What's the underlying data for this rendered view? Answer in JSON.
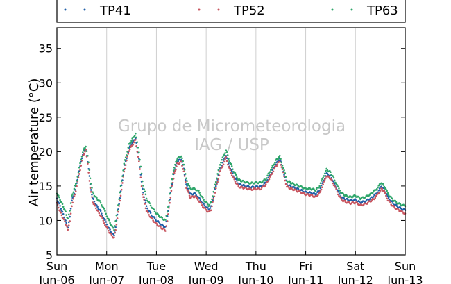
{
  "chart_data": {
    "type": "line",
    "title": "",
    "xlabel": "",
    "ylabel": "Air temperature (°C)",
    "ylim": [
      5,
      38
    ],
    "xlim": [
      0,
      7
    ],
    "yticks": [
      5,
      10,
      15,
      20,
      25,
      30,
      35
    ],
    "xtick_labels": [
      {
        "day": "Sun",
        "date": "Jun-06"
      },
      {
        "day": "Mon",
        "date": "Jun-07"
      },
      {
        "day": "Tue",
        "date": "Jun-08"
      },
      {
        "day": "Wed",
        "date": "Jun-09"
      },
      {
        "day": "Thu",
        "date": "Jun-10"
      },
      {
        "day": "Fri",
        "date": "Jun-11"
      },
      {
        "day": "Sat",
        "date": "Jun-12"
      },
      {
        "day": "Sun",
        "date": "Jun-13"
      }
    ],
    "grid": "vertical",
    "legend_position": "top",
    "watermark": [
      "Grupo de Micrometeorologia",
      "IAG / USP"
    ],
    "x_unit_note": "days since Sun Jun-06 00:00",
    "series": [
      {
        "name": "TP41",
        "color": "#1f5fa8",
        "points": [
          [
            0.0,
            13.2
          ],
          [
            0.08,
            11.8
          ],
          [
            0.16,
            10.2
          ],
          [
            0.22,
            9.0
          ],
          [
            0.26,
            10.5
          ],
          [
            0.3,
            12.8
          ],
          [
            0.38,
            14.8
          ],
          [
            0.45,
            17.2
          ],
          [
            0.52,
            19.6
          ],
          [
            0.58,
            20.4
          ],
          [
            0.62,
            18.6
          ],
          [
            0.67,
            15.2
          ],
          [
            0.72,
            13.2
          ],
          [
            0.8,
            12.1
          ],
          [
            0.88,
            11.3
          ],
          [
            0.95,
            10.2
          ],
          [
            1.02,
            9.2
          ],
          [
            1.1,
            8.2
          ],
          [
            1.15,
            7.8
          ],
          [
            1.18,
            9.0
          ],
          [
            1.25,
            12.5
          ],
          [
            1.35,
            17.5
          ],
          [
            1.45,
            20.5
          ],
          [
            1.58,
            22.0
          ],
          [
            1.65,
            19.0
          ],
          [
            1.72,
            14.5
          ],
          [
            1.8,
            12.0
          ],
          [
            1.9,
            10.8
          ],
          [
            2.0,
            10.0
          ],
          [
            2.1,
            9.4
          ],
          [
            2.18,
            9.0
          ],
          [
            2.22,
            10.5
          ],
          [
            2.3,
            14.8
          ],
          [
            2.36,
            17.2
          ],
          [
            2.42,
            18.6
          ],
          [
            2.5,
            18.9
          ],
          [
            2.55,
            17.5
          ],
          [
            2.6,
            15.2
          ],
          [
            2.68,
            13.8
          ],
          [
            2.78,
            13.9
          ],
          [
            2.85,
            13.3
          ],
          [
            2.95,
            12.3
          ],
          [
            3.05,
            11.6
          ],
          [
            3.1,
            12.0
          ],
          [
            3.18,
            14.5
          ],
          [
            3.28,
            17.5
          ],
          [
            3.4,
            19.5
          ],
          [
            3.45,
            18.2
          ],
          [
            3.55,
            16.5
          ],
          [
            3.65,
            15.3
          ],
          [
            3.78,
            15.0
          ],
          [
            3.9,
            14.8
          ],
          [
            4.0,
            14.9
          ],
          [
            4.1,
            14.9
          ],
          [
            4.2,
            15.5
          ],
          [
            4.3,
            16.8
          ],
          [
            4.4,
            18.2
          ],
          [
            4.48,
            18.9
          ],
          [
            4.55,
            17.2
          ],
          [
            4.62,
            15.2
          ],
          [
            4.75,
            14.8
          ],
          [
            4.9,
            14.4
          ],
          [
            5.0,
            14.1
          ],
          [
            5.1,
            14.0
          ],
          [
            5.2,
            13.8
          ],
          [
            5.28,
            14.4
          ],
          [
            5.35,
            15.6
          ],
          [
            5.42,
            16.8
          ],
          [
            5.5,
            16.4
          ],
          [
            5.58,
            15.3
          ],
          [
            5.65,
            14.2
          ],
          [
            5.72,
            13.4
          ],
          [
            5.8,
            13.1
          ],
          [
            5.9,
            12.9
          ],
          [
            6.0,
            13.0
          ],
          [
            6.1,
            12.6
          ],
          [
            6.2,
            12.8
          ],
          [
            6.3,
            13.2
          ],
          [
            6.38,
            13.6
          ],
          [
            6.45,
            14.2
          ],
          [
            6.52,
            14.9
          ],
          [
            6.58,
            14.5
          ],
          [
            6.65,
            13.4
          ],
          [
            6.75,
            12.5
          ],
          [
            6.85,
            12.0
          ],
          [
            6.95,
            11.6
          ],
          [
            7.0,
            11.5
          ]
        ]
      },
      {
        "name": "TP52",
        "color": "#c8555f",
        "points": [
          [
            0.0,
            12.5
          ],
          [
            0.08,
            11.0
          ],
          [
            0.16,
            9.8
          ],
          [
            0.22,
            8.7
          ],
          [
            0.26,
            10.0
          ],
          [
            0.3,
            12.2
          ],
          [
            0.38,
            14.3
          ],
          [
            0.45,
            16.8
          ],
          [
            0.52,
            19.3
          ],
          [
            0.58,
            20.2
          ],
          [
            0.62,
            18.2
          ],
          [
            0.67,
            14.7
          ],
          [
            0.72,
            12.7
          ],
          [
            0.8,
            11.6
          ],
          [
            0.88,
            10.7
          ],
          [
            0.95,
            9.7
          ],
          [
            1.02,
            8.7
          ],
          [
            1.1,
            7.8
          ],
          [
            1.15,
            7.5
          ],
          [
            1.18,
            8.7
          ],
          [
            1.25,
            12.0
          ],
          [
            1.35,
            17.1
          ],
          [
            1.45,
            20.2
          ],
          [
            1.58,
            21.7
          ],
          [
            1.65,
            18.5
          ],
          [
            1.72,
            13.9
          ],
          [
            1.8,
            11.4
          ],
          [
            1.9,
            10.3
          ],
          [
            2.0,
            9.5
          ],
          [
            2.1,
            8.9
          ],
          [
            2.18,
            8.6
          ],
          [
            2.22,
            10.0
          ],
          [
            2.3,
            14.3
          ],
          [
            2.36,
            16.8
          ],
          [
            2.42,
            18.2
          ],
          [
            2.5,
            18.5
          ],
          [
            2.55,
            17.1
          ],
          [
            2.6,
            14.8
          ],
          [
            2.68,
            13.4
          ],
          [
            2.78,
            13.5
          ],
          [
            2.85,
            12.9
          ],
          [
            2.95,
            11.9
          ],
          [
            3.05,
            11.2
          ],
          [
            3.1,
            11.6
          ],
          [
            3.18,
            14.1
          ],
          [
            3.28,
            17.1
          ],
          [
            3.4,
            19.1
          ],
          [
            3.45,
            17.8
          ],
          [
            3.55,
            16.1
          ],
          [
            3.65,
            14.9
          ],
          [
            3.78,
            14.7
          ],
          [
            3.9,
            14.5
          ],
          [
            4.0,
            14.6
          ],
          [
            4.1,
            14.6
          ],
          [
            4.2,
            15.2
          ],
          [
            4.3,
            16.5
          ],
          [
            4.4,
            17.9
          ],
          [
            4.48,
            18.6
          ],
          [
            4.55,
            16.9
          ],
          [
            4.62,
            14.9
          ],
          [
            4.75,
            14.5
          ],
          [
            4.9,
            14.1
          ],
          [
            5.0,
            13.8
          ],
          [
            5.1,
            13.7
          ],
          [
            5.2,
            13.4
          ],
          [
            5.28,
            14.0
          ],
          [
            5.35,
            15.2
          ],
          [
            5.42,
            16.5
          ],
          [
            5.5,
            16.1
          ],
          [
            5.58,
            15.0
          ],
          [
            5.65,
            13.9
          ],
          [
            5.72,
            13.0
          ],
          [
            5.8,
            12.7
          ],
          [
            5.9,
            12.5
          ],
          [
            6.0,
            12.6
          ],
          [
            6.1,
            12.2
          ],
          [
            6.2,
            12.4
          ],
          [
            6.3,
            12.8
          ],
          [
            6.38,
            13.2
          ],
          [
            6.45,
            13.8
          ],
          [
            6.52,
            14.6
          ],
          [
            6.58,
            14.2
          ],
          [
            6.65,
            13.0
          ],
          [
            6.75,
            12.1
          ],
          [
            6.85,
            11.6
          ],
          [
            6.95,
            11.2
          ],
          [
            7.0,
            11.0
          ]
        ]
      },
      {
        "name": "TP63",
        "color": "#2ea66a",
        "points": [
          [
            0.0,
            14.0
          ],
          [
            0.08,
            12.8
          ],
          [
            0.16,
            11.5
          ],
          [
            0.22,
            10.2
          ],
          [
            0.26,
            11.3
          ],
          [
            0.3,
            13.5
          ],
          [
            0.38,
            15.3
          ],
          [
            0.45,
            17.6
          ],
          [
            0.52,
            20.0
          ],
          [
            0.58,
            20.8
          ],
          [
            0.62,
            19.4
          ],
          [
            0.67,
            16.2
          ],
          [
            0.72,
            14.0
          ],
          [
            0.8,
            13.2
          ],
          [
            0.88,
            12.6
          ],
          [
            0.95,
            11.6
          ],
          [
            1.02,
            10.4
          ],
          [
            1.1,
            9.2
          ],
          [
            1.15,
            8.7
          ],
          [
            1.18,
            9.8
          ],
          [
            1.25,
            13.2
          ],
          [
            1.35,
            18.2
          ],
          [
            1.45,
            21.0
          ],
          [
            1.58,
            22.6
          ],
          [
            1.65,
            20.0
          ],
          [
            1.72,
            15.6
          ],
          [
            1.8,
            13.2
          ],
          [
            1.9,
            12.0
          ],
          [
            2.0,
            11.0
          ],
          [
            2.1,
            10.4
          ],
          [
            2.18,
            10.0
          ],
          [
            2.22,
            11.2
          ],
          [
            2.3,
            15.5
          ],
          [
            2.36,
            17.8
          ],
          [
            2.42,
            19.0
          ],
          [
            2.5,
            19.3
          ],
          [
            2.55,
            18.2
          ],
          [
            2.6,
            16.0
          ],
          [
            2.68,
            14.6
          ],
          [
            2.78,
            14.6
          ],
          [
            2.85,
            14.2
          ],
          [
            2.95,
            13.0
          ],
          [
            3.05,
            12.2
          ],
          [
            3.1,
            12.6
          ],
          [
            3.18,
            15.2
          ],
          [
            3.28,
            18.2
          ],
          [
            3.4,
            20.2
          ],
          [
            3.45,
            19.0
          ],
          [
            3.55,
            17.2
          ],
          [
            3.65,
            15.9
          ],
          [
            3.78,
            15.6
          ],
          [
            3.9,
            15.4
          ],
          [
            4.0,
            15.5
          ],
          [
            4.1,
            15.5
          ],
          [
            4.2,
            16.0
          ],
          [
            4.3,
            17.4
          ],
          [
            4.4,
            18.7
          ],
          [
            4.48,
            19.3
          ],
          [
            4.55,
            17.7
          ],
          [
            4.62,
            15.8
          ],
          [
            4.75,
            15.3
          ],
          [
            4.9,
            14.9
          ],
          [
            5.0,
            14.6
          ],
          [
            5.1,
            14.6
          ],
          [
            5.2,
            14.4
          ],
          [
            5.28,
            15.0
          ],
          [
            5.35,
            16.3
          ],
          [
            5.42,
            17.4
          ],
          [
            5.5,
            17.0
          ],
          [
            5.58,
            15.9
          ],
          [
            5.65,
            14.8
          ],
          [
            5.72,
            14.0
          ],
          [
            5.8,
            13.6
          ],
          [
            5.9,
            13.4
          ],
          [
            6.0,
            13.6
          ],
          [
            6.1,
            13.2
          ],
          [
            6.2,
            13.4
          ],
          [
            6.3,
            13.8
          ],
          [
            6.38,
            14.3
          ],
          [
            6.45,
            14.8
          ],
          [
            6.52,
            15.5
          ],
          [
            6.58,
            15.0
          ],
          [
            6.65,
            13.9
          ],
          [
            6.75,
            13.0
          ],
          [
            6.85,
            12.5
          ],
          [
            6.95,
            12.2
          ],
          [
            7.0,
            12.1
          ]
        ]
      }
    ]
  }
}
